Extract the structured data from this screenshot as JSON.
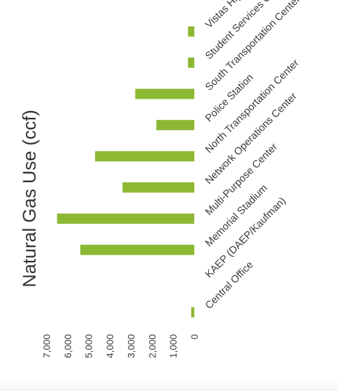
{
  "chart_data": {
    "type": "bar",
    "orientation": "rotated-90-ccw",
    "title": "Natural Gas Use (ccf)",
    "categories": [
      "Central Office",
      "KAEP (DAEP/Kaufman)",
      "Memorial Stadium",
      "Multi-Purpose Center",
      "Network Operations Center",
      "North Transportation Center",
      "Police Station",
      "South Transportation Center",
      "Student Services Center",
      "Vistas High School"
    ],
    "series": [
      {
        "values": [
          150,
          0,
          5400,
          6500,
          3400,
          4700,
          1800,
          2800,
          300,
          300
        ]
      }
    ],
    "value_axis": {
      "ticks": [
        0,
        1000,
        2000,
        3000,
        4000,
        5000,
        6000,
        7000
      ],
      "tick_labels": [
        "0",
        "1,000",
        "2,000",
        "3,000",
        "4,000",
        "5,000",
        "6,000",
        "7,000"
      ],
      "min": 0,
      "max": 7000
    },
    "grid": false,
    "legend": "none",
    "bar_color": "#8DB834",
    "text_color": "#3b3b3b"
  }
}
